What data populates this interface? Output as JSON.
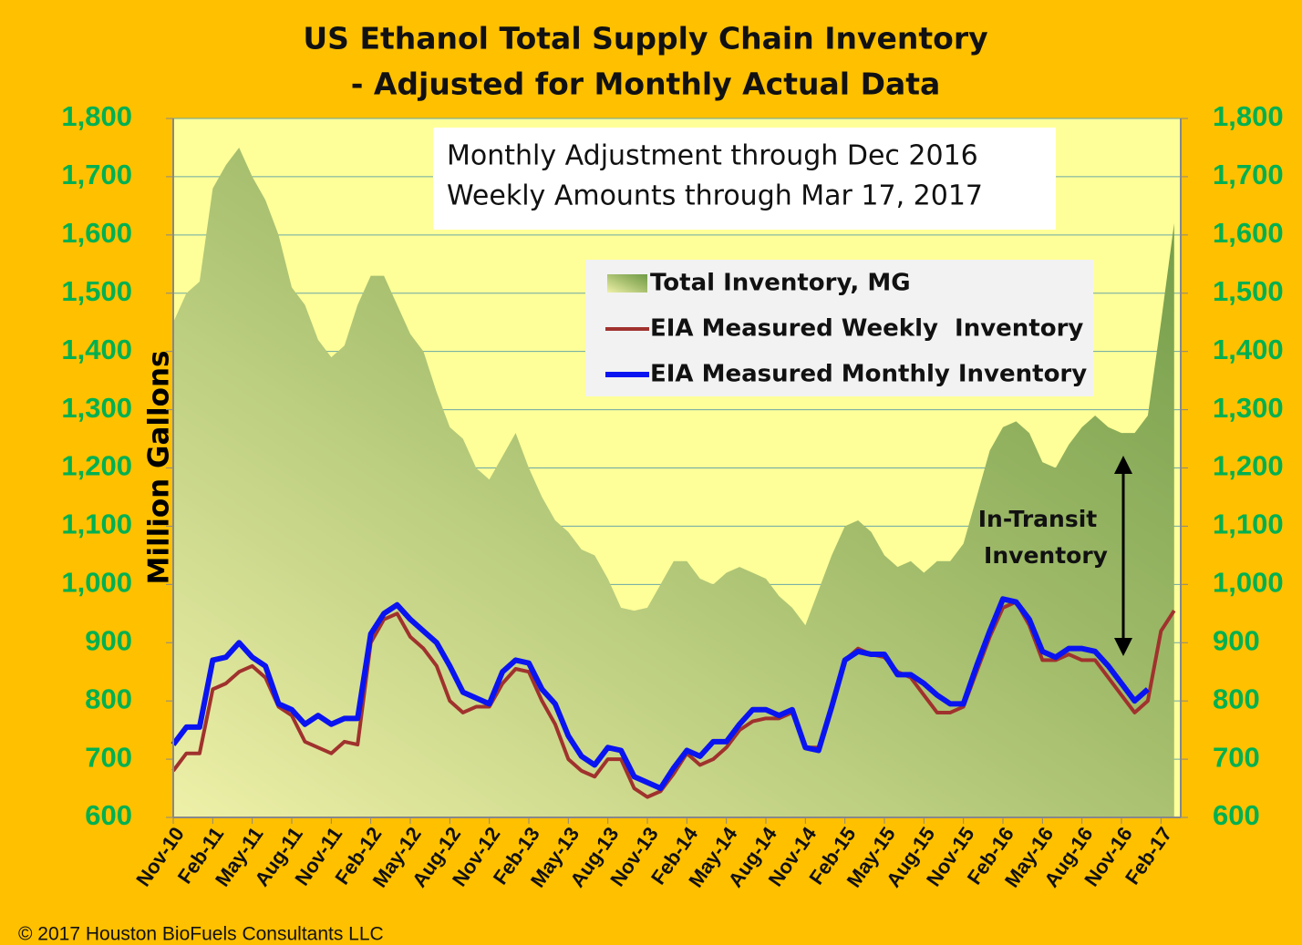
{
  "chart_data": {
    "type": "line",
    "title": "US Ethanol Total Supply Chain Inventory",
    "subtitle": "- Adjusted for Monthly Actual Data",
    "y_label": "Million Gallons",
    "annotations": [
      "Monthly Adjustment through Dec 2016",
      "Weekly Amounts through Mar 17, 2017",
      "In-Transit",
      "Inventory"
    ],
    "footer": "© 2017 Houston BioFuels Consultants LLC",
    "categories": [
      "Nov-10",
      null,
      null,
      "Feb-11",
      null,
      null,
      "May-11",
      null,
      null,
      "Aug-11",
      null,
      null,
      "Nov-11",
      null,
      null,
      "Feb-12",
      null,
      null,
      "May-12",
      null,
      null,
      "Aug-12",
      null,
      null,
      "Nov-12",
      null,
      null,
      "Feb-13",
      null,
      null,
      "May-13",
      null,
      null,
      "Aug-13",
      null,
      null,
      "Nov-13",
      null,
      null,
      "Feb-14",
      null,
      null,
      "May-14",
      null,
      null,
      "Aug-14",
      null,
      null,
      "Nov-14",
      null,
      null,
      "Feb-15",
      null,
      null,
      "May-15",
      null,
      null,
      "Aug-15",
      null,
      null,
      "Nov-15",
      null,
      null,
      "Feb-16",
      null,
      null,
      "May-16",
      null,
      null,
      "Aug-16",
      null,
      null,
      "Nov-16",
      null,
      null,
      "Feb-17",
      null
    ],
    "series": [
      {
        "name": "Total Inventory, MG",
        "type": "area",
        "color": "#7fa34f",
        "values": [
          1450,
          1500,
          1520,
          1680,
          1720,
          1750,
          1700,
          1660,
          1600,
          1510,
          1480,
          1420,
          1390,
          1410,
          1480,
          1530,
          1530,
          1480,
          1430,
          1400,
          1330,
          1270,
          1250,
          1200,
          1180,
          1220,
          1260,
          1200,
          1150,
          1110,
          1090,
          1060,
          1050,
          1010,
          960,
          955,
          960,
          1000,
          1040,
          1040,
          1010,
          1000,
          1020,
          1030,
          1020,
          1010,
          980,
          960,
          930,
          990,
          1050,
          1100,
          1110,
          1090,
          1050,
          1030,
          1040,
          1020,
          1040,
          1040,
          1070,
          1150,
          1230,
          1270,
          1280,
          1260,
          1210,
          1200,
          1240,
          1270,
          1290,
          1270,
          1260,
          1260,
          1290,
          1450,
          1620
        ]
      },
      {
        "name": "EIA Measured Weekly  Inventory",
        "type": "line",
        "color": "#a0322d",
        "width": 4,
        "values": [
          680,
          710,
          710,
          820,
          830,
          850,
          860,
          840,
          790,
          775,
          730,
          720,
          710,
          730,
          725,
          900,
          940,
          950,
          910,
          890,
          860,
          800,
          780,
          790,
          790,
          830,
          855,
          850,
          800,
          760,
          700,
          680,
          670,
          700,
          700,
          650,
          635,
          645,
          675,
          710,
          690,
          700,
          720,
          750,
          765,
          770,
          770,
          780,
          720,
          720,
          790,
          870,
          890,
          880,
          875,
          850,
          840,
          810,
          780,
          780,
          790,
          850,
          910,
          960,
          970,
          930,
          870,
          870,
          880,
          870,
          870,
          840,
          810,
          780,
          800,
          920,
          955
        ]
      },
      {
        "name": "EIA Measured Monthly Inventory",
        "type": "line",
        "color": "#0a14f0",
        "width": 6,
        "values": [
          725,
          755,
          755,
          870,
          875,
          900,
          875,
          860,
          795,
          785,
          760,
          775,
          760,
          770,
          770,
          915,
          950,
          965,
          940,
          920,
          900,
          860,
          815,
          805,
          795,
          850,
          870,
          865,
          820,
          795,
          740,
          705,
          690,
          720,
          715,
          670,
          660,
          650,
          685,
          715,
          705,
          730,
          730,
          760,
          785,
          785,
          775,
          785,
          720,
          715,
          790,
          870,
          885,
          880,
          880,
          845,
          845,
          830,
          810,
          795,
          795,
          860,
          920,
          975,
          970,
          940,
          885,
          875,
          890,
          890,
          885,
          860,
          830,
          800,
          820,
          null,
          null
        ]
      }
    ],
    "ylim": [
      600,
      1800
    ],
    "yticks": [
      600,
      700,
      800,
      900,
      {
        "value": 1000,
        "label": "1,000"
      },
      {
        "value": 1100,
        "label": "1,100"
      },
      {
        "value": 1200,
        "label": "1,200"
      },
      {
        "value": 1300,
        "label": "1,300"
      },
      {
        "value": 1400,
        "label": "1,400"
      },
      {
        "value": 1500,
        "label": "1,500"
      },
      {
        "value": 1600,
        "label": "1,600"
      },
      {
        "value": 1700,
        "label": "1,700"
      },
      {
        "value": 1800,
        "label": "1,800"
      }
    ],
    "y2lim": [
      600,
      1800
    ],
    "y2ticks": [
      600,
      700,
      800,
      900,
      {
        "value": 1000,
        "label": "1,000"
      },
      {
        "value": 1100,
        "label": "1,100"
      },
      {
        "value": 1200,
        "label": "1,200"
      },
      {
        "value": 1300,
        "label": "1,300"
      },
      {
        "value": 1400,
        "label": "1,400"
      },
      {
        "value": 1500,
        "label": "1,500"
      },
      {
        "value": 1600,
        "label": "1,600"
      },
      {
        "value": 1700,
        "label": "1,700"
      },
      {
        "value": 1800,
        "label": "1,800"
      }
    ],
    "grid": true
  }
}
